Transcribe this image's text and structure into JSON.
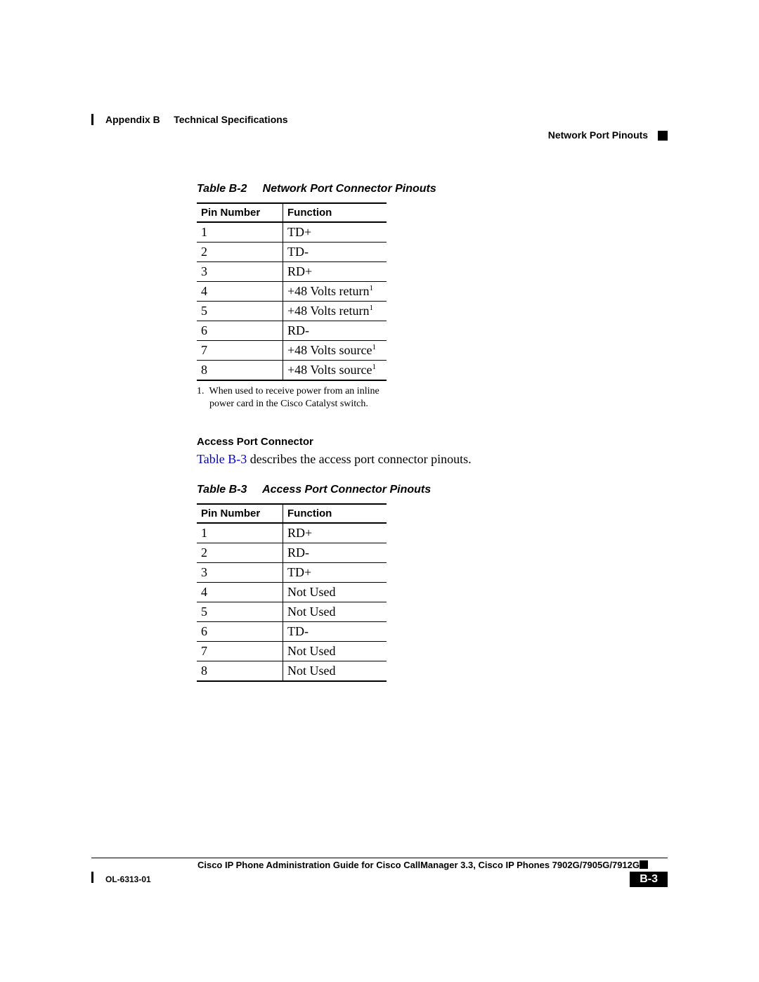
{
  "header": {
    "appendix_label": "Appendix B",
    "appendix_title": "Technical Specifications",
    "section_title": "Network Port Pinouts"
  },
  "table_b2": {
    "caption_label": "Table B-2",
    "caption_title": "Network Port Connector Pinouts",
    "col_pin": "Pin Number",
    "col_func": "Function",
    "rows": [
      {
        "pin": "1",
        "func": "TD+",
        "sup": ""
      },
      {
        "pin": "2",
        "func": "TD-",
        "sup": ""
      },
      {
        "pin": "3",
        "func": "RD+",
        "sup": ""
      },
      {
        "pin": "4",
        "func": "+48 Volts return",
        "sup": "1"
      },
      {
        "pin": "5",
        "func": "+48 Volts return",
        "sup": "1"
      },
      {
        "pin": "6",
        "func": "RD-",
        "sup": ""
      },
      {
        "pin": "7",
        "func": "+48 Volts source",
        "sup": "1"
      },
      {
        "pin": "8",
        "func": "+48 Volts source",
        "sup": "1"
      }
    ],
    "footnote_num": "1.",
    "footnote_text": "When used to receive power from an inline power card in the Cisco Catalyst switch."
  },
  "section_b3": {
    "heading": "Access Port Connector",
    "xref": "Table B-3",
    "body_rest": " describes the access port connector pinouts."
  },
  "table_b3": {
    "caption_label": "Table B-3",
    "caption_title": "Access Port Connector Pinouts",
    "col_pin": "Pin Number",
    "col_func": "Function",
    "rows": [
      {
        "pin": "1",
        "func": "RD+"
      },
      {
        "pin": "2",
        "func": "RD-"
      },
      {
        "pin": "3",
        "func": "TD+"
      },
      {
        "pin": "4",
        "func": "Not Used"
      },
      {
        "pin": "5",
        "func": "Not Used"
      },
      {
        "pin": "6",
        "func": "TD-"
      },
      {
        "pin": "7",
        "func": "Not Used"
      },
      {
        "pin": "8",
        "func": "Not Used"
      }
    ]
  },
  "footer": {
    "doc_title": "Cisco IP Phone Administration Guide for Cisco CallManager 3.3, Cisco IP Phones 7902G/7905G/7912G",
    "doc_id": "OL-6313-01",
    "page_num": "B-3"
  },
  "style": {
    "xref_color": "#0000cc",
    "text_color": "#000000",
    "background": "#ffffff"
  }
}
